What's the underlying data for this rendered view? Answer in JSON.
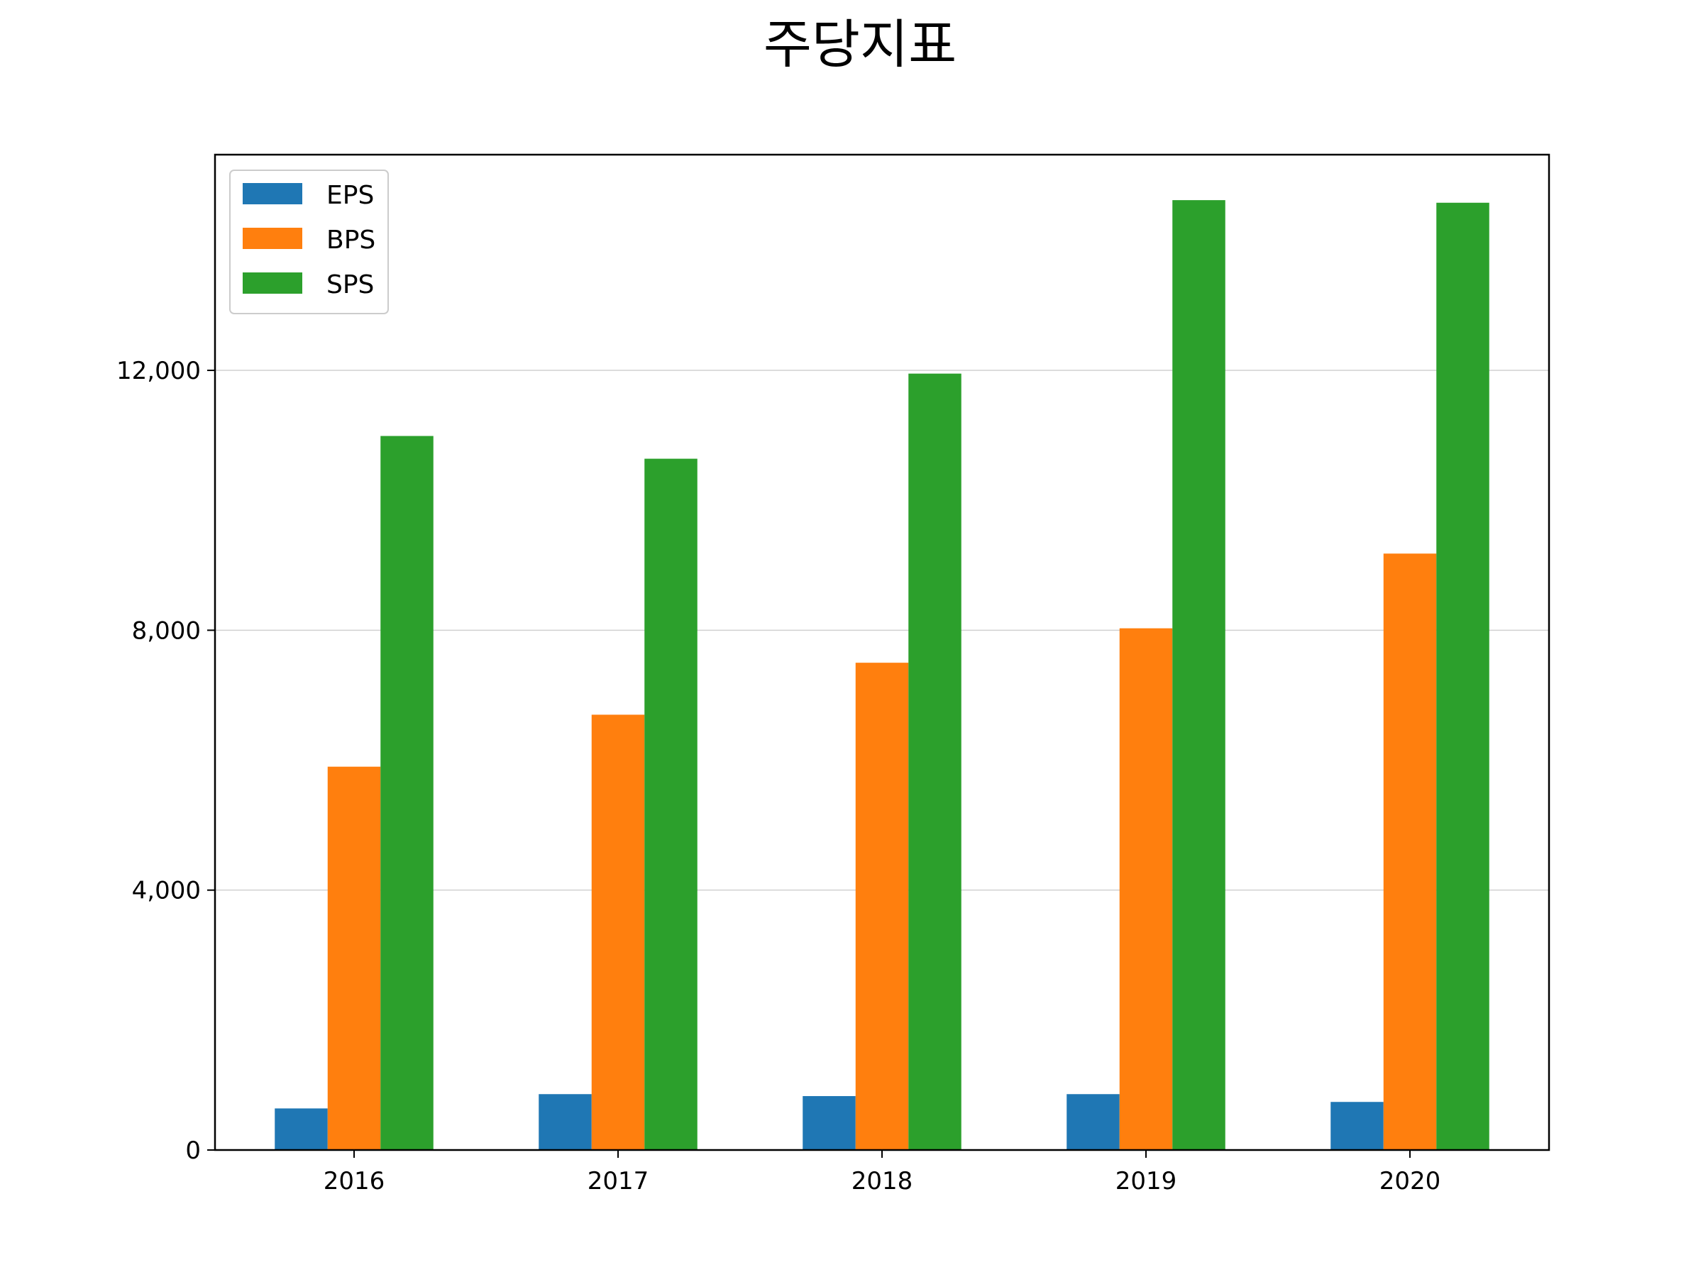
{
  "chart_data": {
    "type": "bar",
    "title": "주당지표",
    "xlabel": "",
    "ylabel": "",
    "categories": [
      "2016",
      "2017",
      "2018",
      "2019",
      "2020"
    ],
    "series": [
      {
        "name": "EPS",
        "color": "#1f77b4",
        "values": [
          640,
          860,
          830,
          860,
          740
        ]
      },
      {
        "name": "BPS",
        "color": "#ff7f0e",
        "values": [
          5900,
          6700,
          7500,
          8030,
          9180
        ]
      },
      {
        "name": "SPS",
        "color": "#2ca02c",
        "values": [
          10990,
          10640,
          11950,
          14620,
          14580
        ]
      }
    ],
    "yticks": [
      0,
      4000,
      8000,
      12000
    ],
    "ytick_labels": [
      "0",
      "4,000",
      "8,000",
      "12,000"
    ],
    "ylim": [
      0,
      15320
    ],
    "grid": {
      "axis": "y",
      "enabled": true
    },
    "legend_position": "top-left"
  }
}
